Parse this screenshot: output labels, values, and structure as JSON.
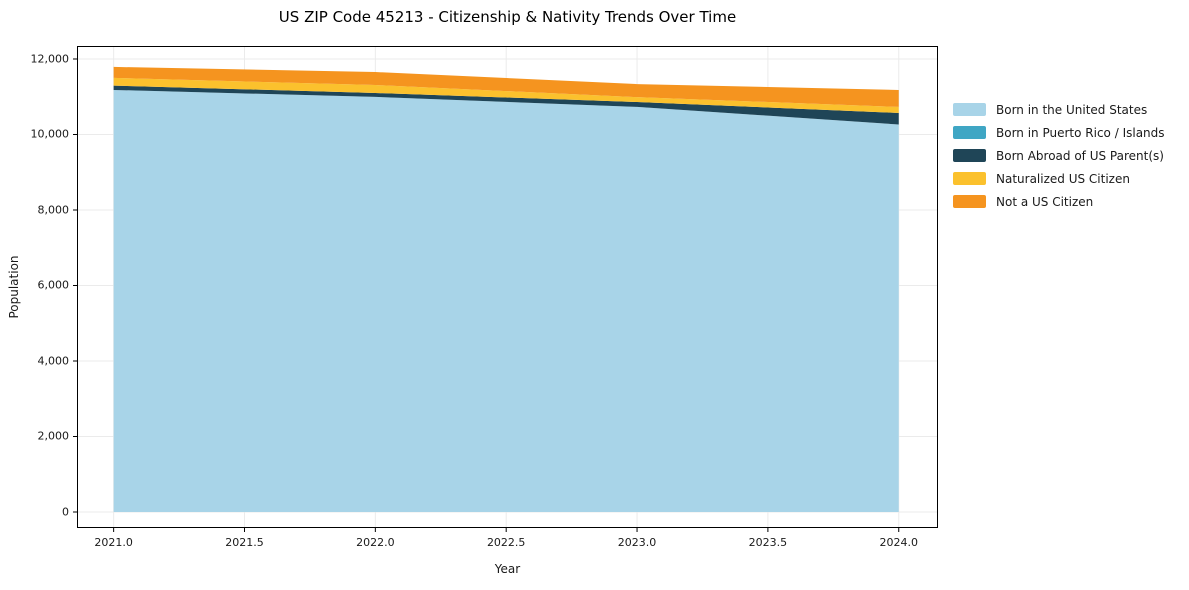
{
  "title": "US ZIP Code 45213 - Citizenship & Nativity Trends Over Time",
  "chart_data": {
    "type": "area",
    "stacked": true,
    "title": "US ZIP Code 45213 - Citizenship & Nativity Trends Over Time",
    "xlabel": "Year",
    "ylabel": "Population",
    "x": [
      2021,
      2022,
      2023,
      2024
    ],
    "series": [
      {
        "name": "Born in the United States",
        "color": "#a8d4e8",
        "values": [
          11180,
          10995,
          10730,
          10265
        ]
      },
      {
        "name": "Born in Puerto Rico / Islands",
        "color": "#3fa6c4",
        "values": [
          0,
          0,
          0,
          0
        ]
      },
      {
        "name": "Born Abroad of US Parent(s)",
        "color": "#1f4557",
        "values": [
          115,
          105,
          130,
          305
        ]
      },
      {
        "name": "Naturalized US Citizen",
        "color": "#fbc12d",
        "values": [
          205,
          210,
          130,
          160
        ]
      },
      {
        "name": "Not a US Citizen",
        "color": "#f5941f",
        "values": [
          290,
          345,
          345,
          450
        ]
      }
    ],
    "xlim": [
      2020.86,
      2024.15
    ],
    "ylim": [
      -424,
      12344
    ],
    "x_ticks": [
      2021.0,
      2021.5,
      2022.0,
      2022.5,
      2023.0,
      2023.5,
      2024.0
    ],
    "x_tick_labels": [
      "2021.0",
      "2021.5",
      "2022.0",
      "2022.5",
      "2023.0",
      "2023.5",
      "2024.0"
    ],
    "y_ticks": [
      0,
      2000,
      4000,
      6000,
      8000,
      10000,
      12000
    ],
    "y_tick_labels": [
      "0",
      "2,000",
      "4,000",
      "6,000",
      "8,000",
      "10,000",
      "12,000"
    ],
    "grid": true,
    "grid_color": "#ebebeb",
    "spine_color": "#000000",
    "legend_position": "right"
  }
}
